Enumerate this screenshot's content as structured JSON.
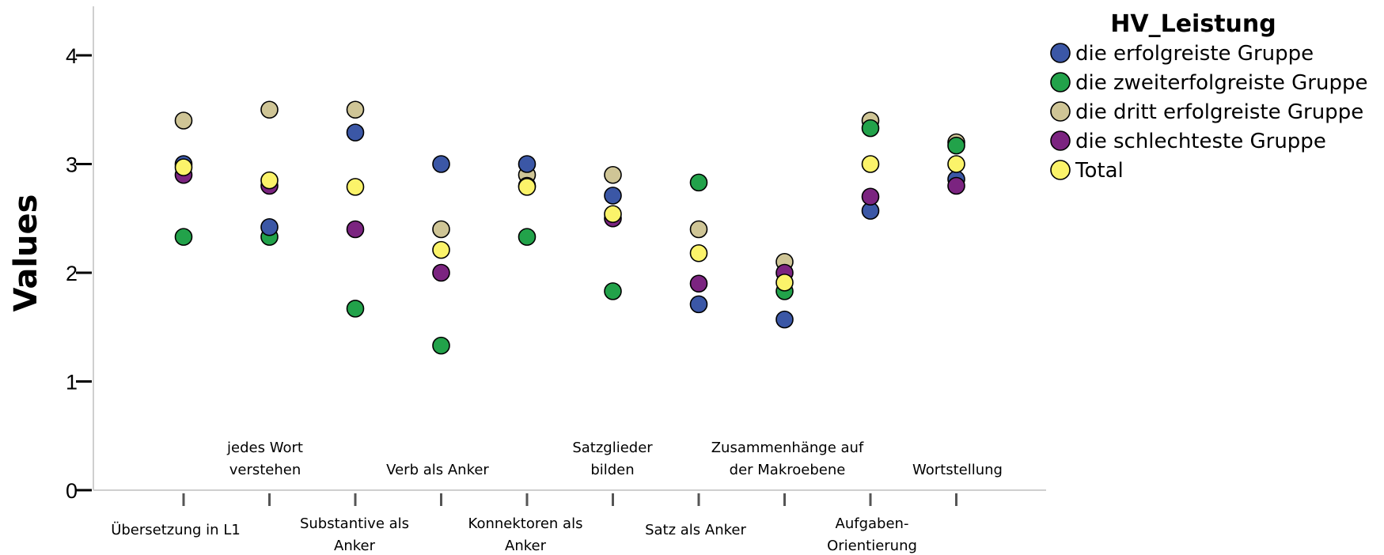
{
  "chart_data": {
    "type": "scatter",
    "title": "",
    "ylabel": "Values",
    "xlabel": "",
    "ylim": [
      0,
      4.4
    ],
    "yticks": [
      0,
      1,
      2,
      3,
      4
    ],
    "grid": false,
    "legend_position": "top-right",
    "legend_title": "HV_Leistung",
    "categories": [
      "Übersetzung in L1",
      "jedes Wort verstehen",
      "Substantive als Anker",
      "Verb als Anker",
      "Konnektoren als Anker",
      "Satzglieder bilden",
      "Satz als Anker",
      "Zusammenhänge auf der Makroebene",
      "Aufgaben-Orientierung",
      "Wortstellung"
    ],
    "category_label_rows": [
      "lower",
      "upper",
      "lower",
      "upper",
      "lower",
      "upper",
      "lower",
      "upper",
      "lower",
      "upper"
    ],
    "series": [
      {
        "name": "die erfolgreiste Gruppe",
        "color": "#3b57a6",
        "values": [
          3.0,
          2.42,
          3.29,
          3.0,
          3.0,
          2.71,
          1.71,
          1.57,
          2.57,
          2.86
        ]
      },
      {
        "name": "die zweiterfolgreiste Gruppe",
        "color": "#22a24a",
        "values": [
          2.33,
          2.33,
          1.67,
          1.33,
          2.33,
          1.83,
          2.83,
          1.83,
          3.33,
          3.17
        ]
      },
      {
        "name": "die dritt erfolgreiste Gruppe",
        "color": "#cfc596",
        "values": [
          3.4,
          3.5,
          3.5,
          2.4,
          2.9,
          2.9,
          2.4,
          2.1,
          3.4,
          3.2
        ]
      },
      {
        "name": "die schlechteste Gruppe",
        "color": "#7b2480",
        "values": [
          2.9,
          2.8,
          2.4,
          2.0,
          2.8,
          2.5,
          1.9,
          2.0,
          2.7,
          2.8
        ]
      },
      {
        "name": "Total",
        "color": "#fbf36a",
        "values": [
          2.97,
          2.85,
          2.79,
          2.21,
          2.79,
          2.54,
          2.18,
          1.91,
          3.0,
          3.0
        ]
      }
    ]
  }
}
